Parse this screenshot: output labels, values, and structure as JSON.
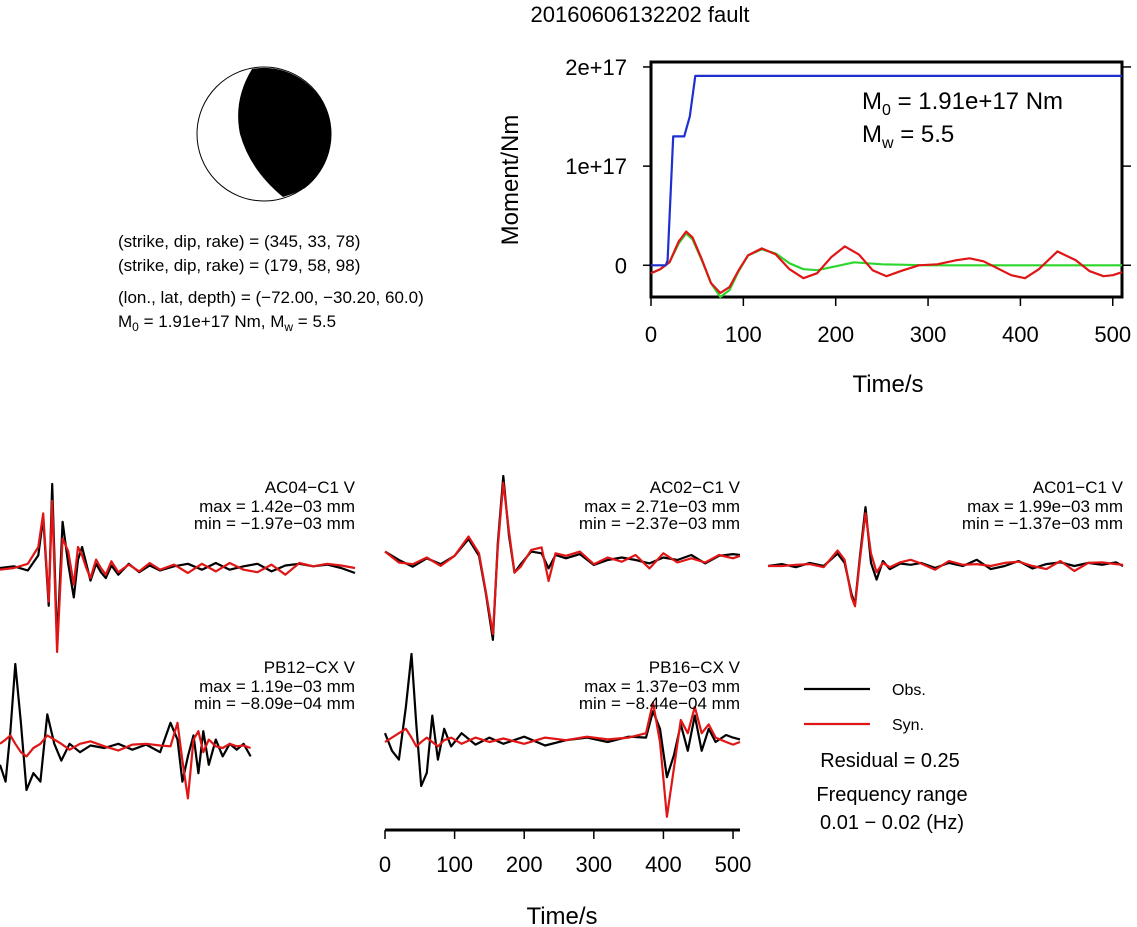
{
  "figure": {
    "title": "20160606132202 fault"
  },
  "beachball": {
    "line1_prefix": "(strike, dip, rake) = ",
    "line1_values": "(345, 33, 78)",
    "line2_prefix": "(strike, dip, rake) = ",
    "line2_values": "(179, 58, 98)",
    "line3_prefix": "(lon., lat, depth) = ",
    "line3_values": "(−72.00, −30.20, 60.0)",
    "m0_symbol": "M",
    "m0_sub": "0",
    "m0_text": " = 1.91e+17 Nm, ",
    "mw_symbol": "M",
    "mw_sub": "w",
    "mw_text": " = 5.5"
  },
  "moment_panel": {
    "ylabel": "Moment/Nm",
    "xlabel": "Time/s",
    "m0_symbol": "M",
    "m0_sub": "0",
    "m0_text": " = 1.91e+17 Nm",
    "mw_symbol": "M",
    "mw_sub": "w",
    "mw_text": " = 5.5"
  },
  "trace_panel": {
    "xlabel": "Time/s",
    "legend_obs": "Obs.",
    "legend_syn": "Syn.",
    "residual": "Residual = 0.25",
    "freq_label": "Frequency range",
    "freq_value": "0.01 − 0.02 (Hz)"
  },
  "colors": {
    "cumulative": "#1f2fd0",
    "rate": "#2fd52f",
    "synthetic": "#e01515",
    "observed": "#000000"
  },
  "chart_data": [
    {
      "type": "line",
      "title": "",
      "xlabel": "Time/s",
      "ylabel": "Moment/Nm",
      "xlim": [
        0,
        510
      ],
      "ylim": [
        -3.2e+16,
        2.05e+17
      ],
      "xticks": [
        "0",
        "100",
        "200",
        "300",
        "400",
        "500"
      ],
      "xtick_values": [
        0,
        100,
        200,
        300,
        400,
        500
      ],
      "yticks": [
        "0",
        "1e+17",
        "2e+17"
      ],
      "ytick_values": [
        0,
        1e+17,
        2e+17
      ],
      "grid": false,
      "series": [
        {
          "color_key": "cumulative",
          "x": [
            0,
            16,
            18,
            24,
            36,
            42,
            48,
            510
          ],
          "y": [
            0,
            0,
            5000000000000000.0,
            1.3e+17,
            1.3e+17,
            1.5e+17,
            1.91e+17,
            1.91e+17
          ]
        },
        {
          "color_key": "rate",
          "x": [
            0,
            10,
            20,
            30,
            38,
            45,
            55,
            65,
            75,
            85,
            95,
            105,
            120,
            135,
            150,
            165,
            180,
            200,
            220,
            250,
            300,
            400,
            510
          ],
          "y": [
            -8000000000000000.0,
            -4000000000000000.0,
            3000000000000000.0,
            2.2e+16,
            3.2e+16,
            2.6e+16,
            5000000000000000.0,
            -1.8e+16,
            -3.2e+16,
            -2.5e+16,
            -6000000000000000.0,
            1e+16,
            1.6e+16,
            1.2e+16,
            2000000000000000.0,
            -4000000000000000.0,
            -5000000000000000.0,
            -1000000000000000.0,
            3000000000000000.0,
            1000000000000000.0,
            0,
            0,
            0
          ]
        },
        {
          "color_key": "synthetic",
          "x": [
            0,
            10,
            20,
            30,
            38,
            45,
            55,
            65,
            75,
            85,
            95,
            105,
            120,
            135,
            150,
            165,
            180,
            195,
            210,
            225,
            240,
            255,
            270,
            290,
            310,
            330,
            345,
            360,
            375,
            390,
            405,
            420,
            440,
            460,
            475,
            490,
            500,
            510
          ],
          "y": [
            -8000000000000000.0,
            -4000000000000000.0,
            3000000000000000.0,
            2.4e+16,
            3.4e+16,
            2.8e+16,
            6000000000000000.0,
            -1.8e+16,
            -2.8e+16,
            -2.2e+16,
            -5000000000000000.0,
            1e+16,
            1.7e+16,
            1.1e+16,
            -4000000000000000.0,
            -1.3e+16,
            -8000000000000000.0,
            8000000000000000.0,
            1.9e+16,
            1.1e+16,
            -5000000000000000.0,
            -1.1e+16,
            -6000000000000000.0,
            0,
            1000000000000000.0,
            5000000000000000.0,
            7000000000000000.0,
            4000000000000000.0,
            -3000000000000000.0,
            -1e+16,
            -1.3e+16,
            -4000000000000000.0,
            1.4e+16,
            5000000000000000.0,
            -6000000000000000.0,
            -1.1e+16,
            -1e+16,
            -7000000000000000.0
          ]
        }
      ]
    },
    {
      "type": "line",
      "title": "AC04−C1 V",
      "max_label": "max = 1.42e−03 mm",
      "min_label": "min = −1.97e−03 mm",
      "xlim": [
        0,
        510
      ],
      "ylim": [
        -1.0,
        1.0
      ],
      "series": [
        {
          "color_key": "observed",
          "x": [
            0,
            20,
            40,
            55,
            62,
            70,
            75,
            82,
            90,
            98,
            106,
            112,
            118,
            124,
            130,
            138,
            145,
            152,
            160,
            170,
            185,
            200,
            215,
            230,
            250,
            270,
            290,
            310,
            330,
            350,
            370,
            390,
            410,
            430,
            450,
            470,
            490,
            510
          ],
          "y": [
            0,
            0.02,
            -0.03,
            0.15,
            0.6,
            -0.45,
            1.0,
            -0.9,
            0.55,
            0.05,
            -0.35,
            0.1,
            0.25,
            0.05,
            -0.15,
            0.05,
            -0.05,
            -0.12,
            0.03,
            -0.08,
            0.05,
            -0.05,
            0.03,
            -0.03,
            0.02,
            0.05,
            -0.02,
            0.06,
            -0.02,
            0.02,
            0.05,
            -0.04,
            0.03,
            0.05,
            0.02,
            0.04,
            0.0,
            -0.06
          ]
        },
        {
          "color_key": "synthetic",
          "x": [
            0,
            20,
            40,
            55,
            62,
            70,
            75,
            82,
            90,
            98,
            106,
            112,
            118,
            124,
            130,
            138,
            145,
            152,
            160,
            170,
            185,
            200,
            215,
            230,
            250,
            270,
            290,
            310,
            330,
            350,
            370,
            390,
            410,
            430,
            450,
            470,
            490,
            510
          ],
          "y": [
            -0.02,
            0.0,
            0.05,
            0.25,
            0.65,
            -0.4,
            0.8,
            -1.0,
            0.35,
            0.2,
            -0.2,
            0.25,
            0.15,
            0.0,
            -0.12,
            0.1,
            0.0,
            -0.08,
            0.08,
            -0.05,
            0.04,
            -0.04,
            0.06,
            -0.02,
            0.04,
            -0.06,
            0.05,
            -0.04,
            0.06,
            -0.02,
            -0.05,
            0.04,
            -0.08,
            0.06,
            0.02,
            0.05,
            0.03,
            0.0
          ]
        }
      ]
    },
    {
      "type": "line",
      "title": "AC02−C1 V",
      "max_label": "max = 2.71e−03 mm",
      "min_label": "min = −2.37e−03 mm",
      "xlim": [
        0,
        510
      ],
      "ylim": [
        -1.0,
        1.0
      ],
      "series": [
        {
          "color_key": "observed",
          "x": [
            0,
            20,
            40,
            60,
            80,
            100,
            120,
            135,
            145,
            155,
            162,
            170,
            178,
            186,
            195,
            210,
            225,
            235,
            245,
            260,
            280,
            300,
            320,
            340,
            360,
            380,
            400,
            420,
            440,
            460,
            480,
            500,
            510
          ],
          "y": [
            0.1,
            0.0,
            -0.08,
            0.02,
            -0.05,
            0.05,
            0.25,
            0.05,
            -0.4,
            -0.95,
            0.2,
            1.0,
            0.3,
            -0.15,
            -0.05,
            0.1,
            0.08,
            -0.1,
            0.06,
            0.02,
            0.07,
            -0.06,
            0.0,
            0.03,
            0.0,
            -0.04,
            0.03,
            0.0,
            0.06,
            -0.04,
            0.05,
            0.07,
            0.06
          ]
        },
        {
          "color_key": "synthetic",
          "x": [
            0,
            20,
            40,
            60,
            80,
            100,
            120,
            135,
            145,
            155,
            162,
            170,
            178,
            186,
            195,
            210,
            225,
            235,
            245,
            260,
            280,
            300,
            320,
            340,
            360,
            380,
            400,
            420,
            440,
            460,
            480,
            500,
            510
          ],
          "y": [
            0.1,
            -0.03,
            -0.05,
            0.03,
            -0.07,
            0.05,
            0.28,
            0.08,
            -0.38,
            -0.88,
            0.15,
            0.92,
            0.35,
            -0.15,
            -0.08,
            0.12,
            0.15,
            -0.25,
            0.08,
            0.05,
            0.1,
            -0.05,
            0.03,
            -0.02,
            0.06,
            -0.1,
            0.08,
            -0.03,
            0.02,
            -0.03,
            0.06,
            0.02,
            0.05
          ]
        }
      ]
    },
    {
      "type": "line",
      "title": "AC01−C1 V",
      "max_label": "max = 1.99e−03 mm",
      "min_label": "min = −1.37e−03 mm",
      "xlim": [
        0,
        510
      ],
      "ylim": [
        -1.0,
        1.0
      ],
      "series": [
        {
          "color_key": "observed",
          "x": [
            0,
            20,
            40,
            60,
            80,
            100,
            110,
            120,
            125,
            132,
            140,
            148,
            156,
            165,
            175,
            190,
            205,
            220,
            240,
            260,
            280,
            300,
            320,
            340,
            360,
            380,
            400,
            420,
            440,
            460,
            480,
            500,
            510
          ],
          "y": [
            0.0,
            0.03,
            -0.02,
            0.05,
            0.0,
            0.2,
            0.05,
            -0.45,
            -0.62,
            0.15,
            0.95,
            0.05,
            -0.22,
            0.08,
            -0.05,
            0.04,
            0.02,
            0.05,
            -0.03,
            0.05,
            0.0,
            0.1,
            -0.05,
            0.0,
            0.08,
            -0.04,
            0.03,
            0.06,
            0.0,
            0.05,
            0.02,
            0.06,
            0.0
          ]
        },
        {
          "color_key": "synthetic",
          "x": [
            0,
            20,
            40,
            60,
            80,
            100,
            110,
            120,
            125,
            132,
            140,
            148,
            156,
            165,
            175,
            190,
            205,
            220,
            240,
            260,
            280,
            300,
            320,
            340,
            360,
            380,
            400,
            420,
            440,
            460,
            480,
            500,
            510
          ],
          "y": [
            0.0,
            0.0,
            0.02,
            0.03,
            -0.02,
            0.25,
            0.1,
            -0.5,
            -0.65,
            0.1,
            0.85,
            0.2,
            -0.1,
            0.05,
            -0.02,
            0.06,
            0.1,
            0.04,
            -0.06,
            0.08,
            0.02,
            0.03,
            0.0,
            0.05,
            0.07,
            0.0,
            -0.05,
            0.08,
            -0.08,
            0.05,
            0.06,
            0.03,
            0.02
          ]
        }
      ]
    },
    {
      "type": "line",
      "title": "PB12−CX V",
      "max_label": "max = 1.19e−03 mm",
      "min_label": "min = −8.09e−04 mm",
      "xlim": [
        0,
        510
      ],
      "ylim": [
        -1.0,
        1.0
      ],
      "series": [
        {
          "color_key": "observed",
          "x": [
            0,
            8,
            15,
            22,
            30,
            38,
            48,
            58,
            68,
            78,
            88,
            100,
            115,
            130,
            150,
            170,
            190,
            210,
            230,
            245,
            255,
            262,
            270,
            278,
            285,
            292,
            300,
            310,
            320,
            330,
            340,
            350,
            360
          ],
          "y": [
            -0.2,
            -0.4,
            0.2,
            1.0,
            0.3,
            -0.5,
            -0.3,
            -0.4,
            0.4,
            0.05,
            -0.15,
            0.05,
            -0.05,
            0.03,
            0.0,
            0.05,
            -0.02,
            0.04,
            -0.05,
            0.3,
            0.1,
            -0.4,
            -0.1,
            0.15,
            -0.3,
            0.2,
            -0.2,
            0.1,
            -0.1,
            0.05,
            -0.02,
            0.05,
            -0.1
          ]
        },
        {
          "color_key": "synthetic",
          "x": [
            0,
            8,
            15,
            22,
            30,
            38,
            48,
            58,
            68,
            78,
            88,
            100,
            115,
            130,
            150,
            170,
            190,
            210,
            230,
            245,
            255,
            262,
            270,
            278,
            285,
            292,
            300,
            310,
            320,
            330,
            340,
            350,
            360
          ],
          "y": [
            0.05,
            0.1,
            0.15,
            0.05,
            -0.05,
            -0.1,
            0.0,
            0.05,
            0.15,
            0.1,
            0.05,
            -0.02,
            0.05,
            0.08,
            0.02,
            -0.03,
            0.04,
            0.05,
            0.03,
            0.02,
            0.3,
            -0.15,
            -0.6,
            0.1,
            0.2,
            -0.05,
            0.1,
            0.02,
            0.0,
            0.05,
            0.02,
            0.03,
            0.0
          ]
        }
      ]
    },
    {
      "type": "line",
      "title": "PB16−CX V",
      "max_label": "max = 1.37e−03 mm",
      "min_label": "min = −8.44e−04 mm",
      "xlim": [
        0,
        510
      ],
      "ylim": [
        -1.0,
        1.0
      ],
      "series": [
        {
          "color_key": "observed",
          "x": [
            0,
            10,
            20,
            30,
            38,
            45,
            52,
            60,
            68,
            76,
            85,
            95,
            110,
            130,
            150,
            170,
            200,
            230,
            260,
            290,
            320,
            350,
            375,
            385,
            395,
            405,
            415,
            425,
            435,
            445,
            455,
            465,
            475,
            490,
            500,
            510
          ],
          "y": [
            0.1,
            -0.1,
            -0.2,
            0.4,
            1.0,
            0.2,
            -0.5,
            -0.35,
            0.3,
            -0.2,
            0.15,
            -0.05,
            0.1,
            -0.03,
            0.05,
            -0.02,
            0.06,
            -0.04,
            0.02,
            0.05,
            0.0,
            0.06,
            0.05,
            0.35,
            0.15,
            -0.4,
            -0.15,
            0.2,
            -0.1,
            0.3,
            -0.1,
            0.15,
            0.0,
            0.08,
            0.05,
            0.03
          ]
        },
        {
          "color_key": "synthetic",
          "x": [
            0,
            10,
            20,
            30,
            38,
            45,
            52,
            60,
            68,
            76,
            85,
            95,
            110,
            130,
            150,
            170,
            200,
            230,
            260,
            290,
            320,
            350,
            375,
            385,
            395,
            405,
            415,
            425,
            435,
            445,
            455,
            465,
            475,
            490,
            500,
            510
          ],
          "y": [
            0.0,
            0.05,
            0.1,
            0.15,
            0.05,
            -0.05,
            0.0,
            0.05,
            0.0,
            -0.05,
            0.02,
            0.05,
            -0.02,
            0.05,
            0.0,
            0.04,
            -0.02,
            0.05,
            0.02,
            0.06,
            0.03,
            0.05,
            0.1,
            0.45,
            0.0,
            -0.85,
            -0.3,
            0.25,
            0.1,
            0.4,
            0.1,
            0.2,
            0.05,
            0.0,
            -0.03,
            0.0
          ]
        }
      ]
    }
  ]
}
